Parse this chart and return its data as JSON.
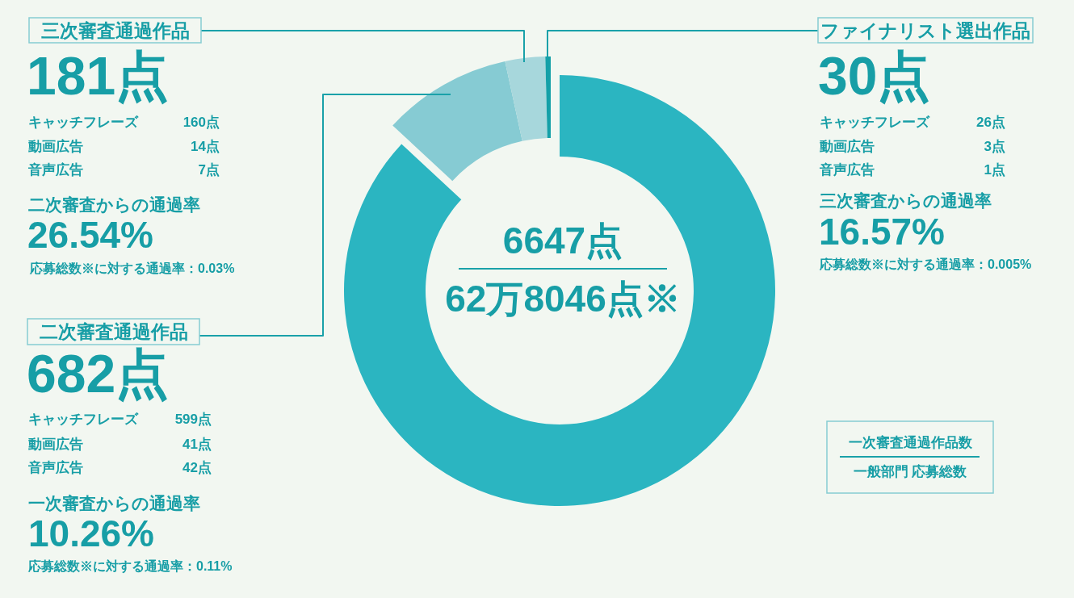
{
  "chart_data": {
    "type": "donut",
    "categories": [
      null,
      "二次審査通過作品",
      "三次審査通過作品",
      "ファイナリスト選出作品"
    ],
    "values": [
      86.9,
      9.7,
      3.0,
      0.4
    ],
    "colors": [
      "#2bb5c1",
      "#86cbd3",
      "#a7d7dc",
      "#14a0a8"
    ],
    "annotations": [
      "181点",
      "キャッチフレーズ",
      "160点",
      "動画広告",
      "14点",
      "音声広告",
      "7点",
      "二次審査からの通過率",
      "26.54%",
      "応募総数※に対する通過率：0.03%",
      "30点",
      "キャッチフレーズ",
      "26点",
      "動画広告",
      "3点",
      "音声広告",
      "1点",
      "三次審査からの通過率",
      "16.57%",
      "応募総数※に対する通過率：0.005%",
      "6647点",
      "62万8046点※",
      "682点",
      "キャッチフレーズ",
      "599点",
      "動画広告",
      "41点",
      "音声広告",
      "42点",
      "一次審査からの通過率",
      "10.26%",
      "応募総数※に対する通過率：0.11%",
      "一次審査通過作品数",
      "一般部門 応募総数"
    ]
  }
}
